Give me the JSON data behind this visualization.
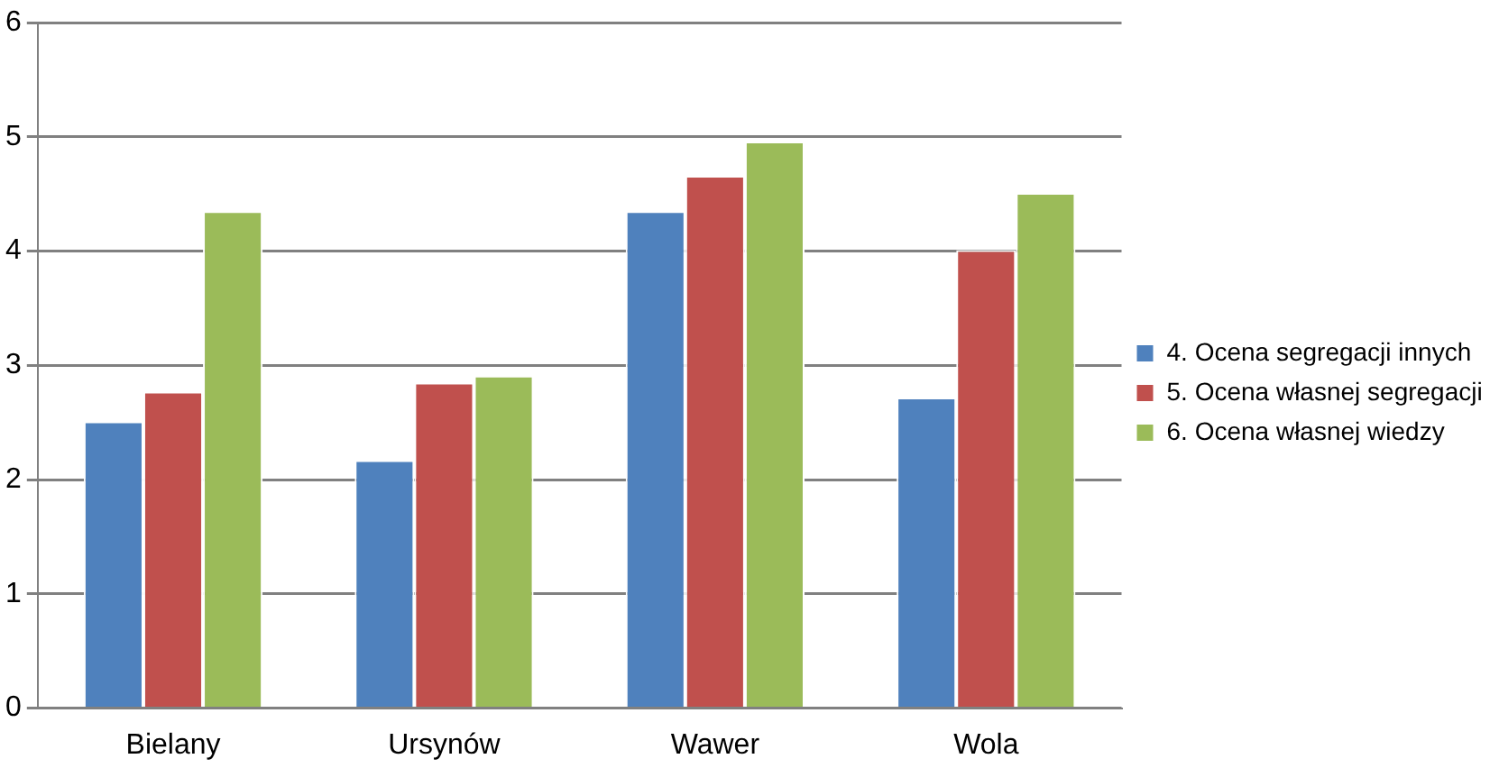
{
  "chart_data": {
    "type": "bar",
    "categories": [
      "Bielany",
      "Ursynów",
      "Wawer",
      "Wola"
    ],
    "series": [
      {
        "name": "4. Ocena segregacji innych",
        "color": "#4f81bd",
        "values": [
          2.51,
          2.17,
          4.35,
          2.72
        ]
      },
      {
        "name": "5. Ocena własnej segregacji",
        "color": "#c0504d",
        "values": [
          2.77,
          2.85,
          4.66,
          4.01
        ]
      },
      {
        "name": "6. Ocena własnej wiedzy",
        "color": "#9bbb59",
        "values": [
          4.35,
          2.91,
          4.96,
          4.51
        ]
      }
    ],
    "ylim": [
      0,
      6
    ],
    "yticks": [
      0,
      1,
      2,
      3,
      4,
      5,
      6
    ],
    "grid": "y",
    "legend": "right"
  }
}
